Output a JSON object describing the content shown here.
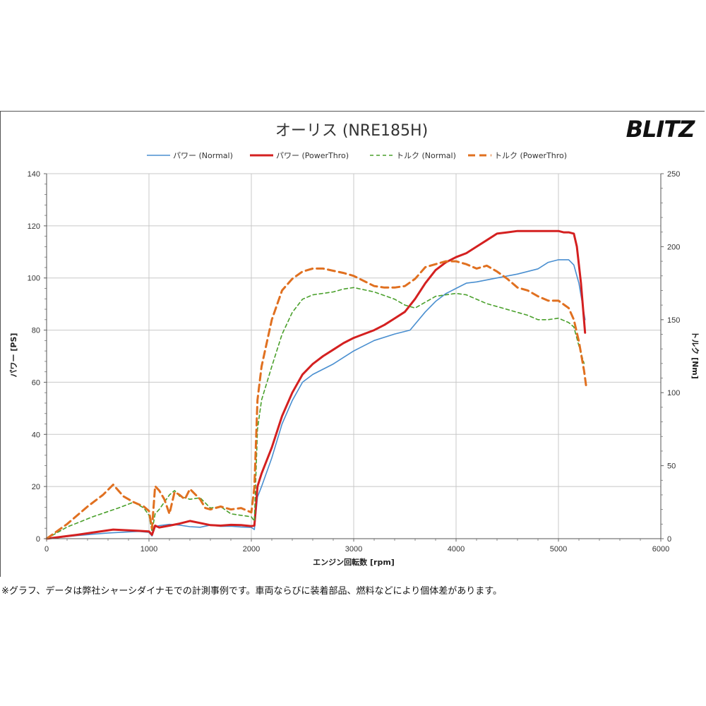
{
  "chart_data": {
    "type": "line",
    "title": "オーリス (NRE185H)",
    "logo": "BLITZ",
    "xlabel": "エンジン回転数 [rpm]",
    "ylabel_left": "パワー [PS]",
    "ylabel_right": "トルク [Nm]",
    "xlim": [
      0,
      6000
    ],
    "ylim_left": [
      0,
      140
    ],
    "ylim_right": [
      0,
      250
    ],
    "x_ticks": [
      "0",
      "1000",
      "2000",
      "3000",
      "4000",
      "5000",
      "6000"
    ],
    "y_ticks_left": [
      "0",
      "20",
      "40",
      "60",
      "80",
      "100",
      "120",
      "140"
    ],
    "y_ticks_right": [
      "0",
      "50",
      "100",
      "150",
      "200",
      "250"
    ],
    "grid": true,
    "legend_position": "top",
    "series": [
      {
        "name": "パワー (Normal)",
        "axis": "left",
        "color": "#4a8fd0",
        "style": "solid",
        "x": [
          0,
          300,
          600,
          900,
          1000,
          1030,
          1060,
          1100,
          1200,
          1300,
          1400,
          1500,
          1600,
          1700,
          1800,
          1900,
          2000,
          2030,
          2060,
          2100,
          2200,
          2300,
          2400,
          2500,
          2600,
          2700,
          2800,
          2900,
          3000,
          3200,
          3400,
          3550,
          3700,
          3800,
          3900,
          4000,
          4100,
          4200,
          4400,
          4600,
          4800,
          4900,
          5000,
          5100,
          5150,
          5200,
          5260
        ],
        "values": [
          0,
          1.2,
          2.2,
          2.8,
          2.4,
          1.0,
          4.5,
          5.0,
          5.5,
          5.2,
          4.6,
          4.4,
          5.2,
          4.7,
          4.8,
          4.5,
          4.3,
          3.5,
          16,
          20,
          31,
          44,
          53,
          60,
          63,
          65,
          67,
          69.5,
          72,
          76,
          78.5,
          80,
          87,
          91,
          94,
          96,
          98,
          98.5,
          100,
          101.5,
          103.5,
          106,
          107,
          107,
          105,
          98,
          84
        ]
      },
      {
        "name": "パワー (PowerThro)",
        "axis": "left",
        "color": "#d42020",
        "style": "solid",
        "x": [
          0,
          300,
          650,
          900,
          1000,
          1030,
          1060,
          1100,
          1200,
          1300,
          1400,
          1500,
          1600,
          1700,
          1800,
          1900,
          2000,
          2030,
          2060,
          2100,
          2200,
          2300,
          2400,
          2500,
          2600,
          2700,
          2800,
          2900,
          3000,
          3200,
          3300,
          3400,
          3500,
          3600,
          3700,
          3800,
          3900,
          4000,
          4100,
          4200,
          4300,
          4400,
          4500,
          4600,
          4800,
          4900,
          5000,
          5050,
          5100,
          5150,
          5180,
          5220,
          5260
        ],
        "values": [
          0,
          1.5,
          3.5,
          3.0,
          2.8,
          1.5,
          5.0,
          4.3,
          5.0,
          5.8,
          6.8,
          6.0,
          5.2,
          5.0,
          5.3,
          5.2,
          4.8,
          5.0,
          20,
          25,
          35,
          47,
          56,
          63,
          67,
          70,
          72.5,
          75,
          77,
          80,
          82,
          84.5,
          87,
          92,
          98,
          103,
          106,
          108,
          109.5,
          112,
          114.5,
          117,
          117.5,
          118,
          118,
          118,
          118,
          117.5,
          117.5,
          117,
          112,
          98,
          79
        ]
      },
      {
        "name": "トルク (Normal)",
        "axis": "right",
        "color": "#4aa02c",
        "style": "dashed",
        "x": [
          0,
          200,
          450,
          700,
          850,
          950,
          1000,
          1030,
          1060,
          1100,
          1200,
          1250,
          1300,
          1400,
          1500,
          1600,
          1700,
          1800,
          1900,
          2000,
          2030,
          2060,
          2100,
          2200,
          2300,
          2400,
          2500,
          2600,
          2800,
          2900,
          3000,
          3200,
          3400,
          3500,
          3600,
          3700,
          3800,
          3900,
          4000,
          4100,
          4300,
          4500,
          4700,
          4800,
          4900,
          5000,
          5100,
          5150,
          5200,
          5250
        ],
        "values": [
          0,
          8,
          15,
          21,
          25,
          21,
          16,
          5,
          17,
          20,
          30,
          33,
          29,
          27,
          28,
          21,
          22,
          17,
          16,
          15,
          12,
          75,
          95,
          118,
          140,
          155,
          164,
          167,
          169,
          171,
          172,
          169,
          164,
          160,
          158,
          162,
          166,
          167,
          168,
          167,
          161,
          157,
          153,
          150,
          150,
          151,
          148,
          145,
          132,
          120
        ]
      },
      {
        "name": "トルク (PowerThro)",
        "axis": "right",
        "color": "#e07020",
        "style": "dashed",
        "x": [
          0,
          200,
          400,
          550,
          650,
          750,
          850,
          950,
          1000,
          1030,
          1060,
          1100,
          1150,
          1200,
          1250,
          1300,
          1350,
          1400,
          1500,
          1550,
          1600,
          1700,
          1800,
          1900,
          2000,
          2030,
          2060,
          2100,
          2200,
          2300,
          2400,
          2500,
          2600,
          2700,
          2900,
          3000,
          3200,
          3300,
          3400,
          3500,
          3600,
          3700,
          3800,
          3900,
          4000,
          4100,
          4200,
          4300,
          4400,
          4500,
          4600,
          4700,
          4800,
          4900,
          5000,
          5100,
          5150,
          5200,
          5250,
          5270
        ],
        "values": [
          0,
          10,
          22,
          30,
          37,
          29,
          25,
          22,
          19,
          7,
          36,
          33,
          27,
          17,
          32,
          30,
          27,
          34,
          27,
          21,
          20,
          22,
          20,
          21,
          18,
          35,
          95,
          118,
          150,
          170,
          178,
          183,
          185,
          185,
          182,
          180,
          173,
          172,
          172,
          173,
          178,
          186,
          188,
          190,
          190,
          188,
          185,
          187,
          183,
          178,
          172,
          170,
          166,
          163,
          163,
          158,
          150,
          135,
          115,
          105
        ]
      }
    ],
    "footnote": "※グラフ、データは弊社シャーシダイナモでの計測事例です。車両ならびに装着部品、燃料などにより個体差があります。"
  }
}
